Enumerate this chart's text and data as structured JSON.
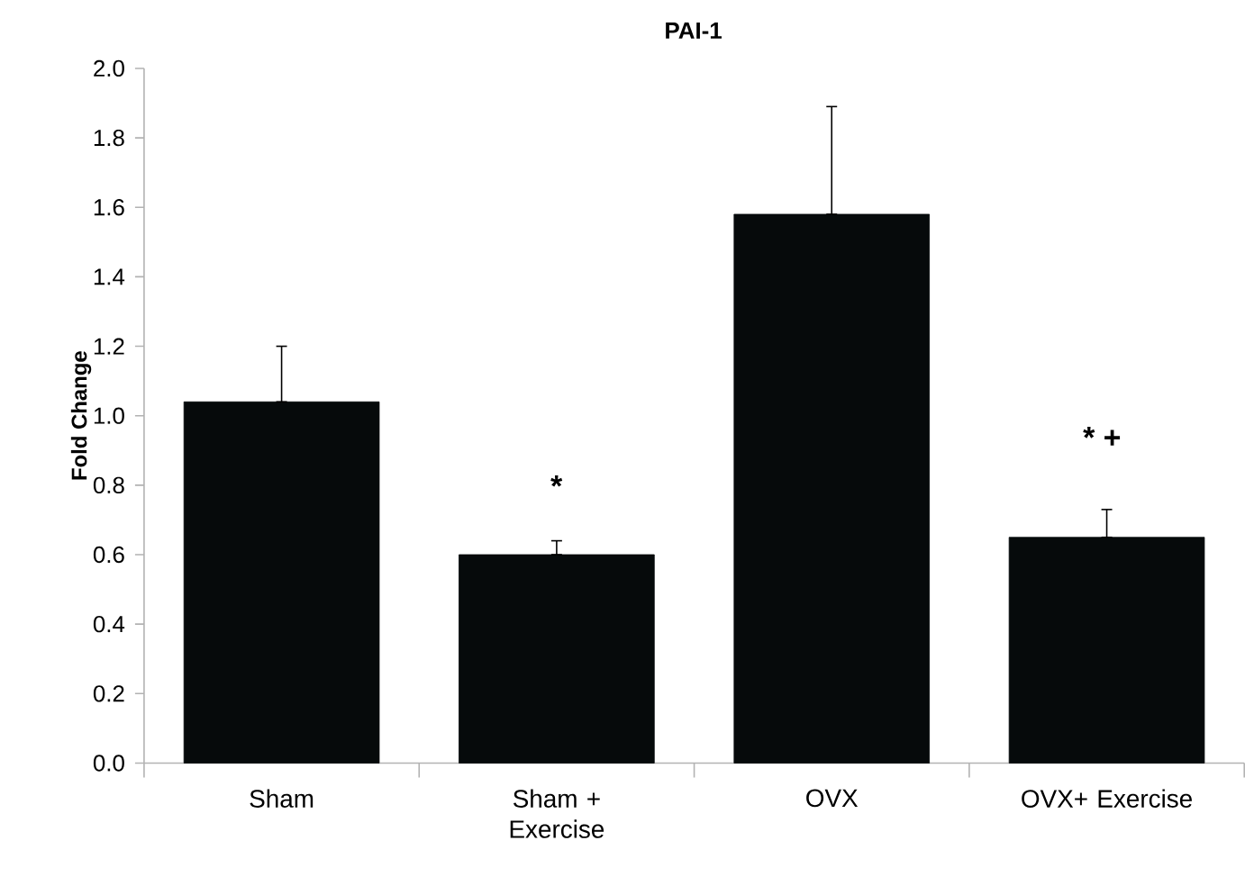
{
  "chart_data": {
    "type": "bar",
    "title": "PAI-1",
    "ylabel": "Fold Change",
    "categories": [
      "Sham",
      "Sham + Exercise",
      "OVX",
      "OVX+ Exercise"
    ],
    "values": [
      1.04,
      0.6,
      1.58,
      0.65
    ],
    "errors": [
      [
        1.04,
        1.2
      ],
      [
        0.6,
        0.64
      ],
      [
        1.58,
        1.89
      ],
      [
        0.65,
        0.73
      ]
    ],
    "color": "#060a0b",
    "ylim": [
      0,
      2
    ],
    "yticks": [
      {
        "value": 0,
        "label": "0.0"
      },
      {
        "value": 0.2,
        "label": "0.2"
      },
      {
        "value": 0.4,
        "label": "0.4"
      },
      {
        "value": 0.6,
        "label": "0.6"
      },
      {
        "value": 0.8,
        "label": "0.8"
      },
      {
        "value": 1.0,
        "label": "1.0"
      },
      {
        "value": 1.2,
        "label": "1.2"
      },
      {
        "value": 1.4,
        "label": "1.4"
      },
      {
        "value": 1.6,
        "label": "1.6"
      },
      {
        "value": 1.8,
        "label": "1.8"
      },
      {
        "value": 2.0,
        "label": "2.0"
      }
    ],
    "annotations": [
      "*",
      "* +"
    ],
    "grid": false
  }
}
